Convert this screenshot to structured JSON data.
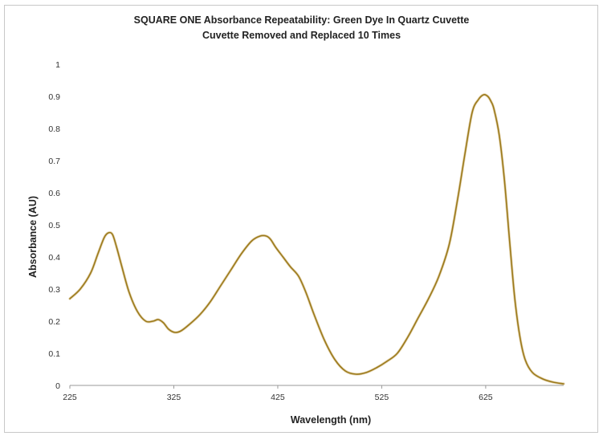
{
  "chart_data": {
    "type": "line",
    "title": "SQUARE ONE Absorbance Repeatability: Green Dye In Quartz Cuvette",
    "subtitle": "Cuvette Removed and Replaced 10 Times",
    "xlabel": "Wavelength (nm)",
    "ylabel": "Absorbance (AU)",
    "xlim": [
      225,
      700
    ],
    "ylim": [
      0,
      1
    ],
    "x_ticks": [
      225,
      325,
      425,
      525,
      625
    ],
    "x_tick_labels": [
      "225",
      "325",
      "425",
      "525",
      "625"
    ],
    "y_ticks": [
      0,
      0.1,
      0.2,
      0.3,
      0.4,
      0.5,
      0.6,
      0.7,
      0.8,
      0.9,
      1
    ],
    "y_tick_labels": [
      "0",
      "0.1",
      "0.2",
      "0.3",
      "0.4",
      "0.5",
      "0.6",
      "0.7",
      "0.8",
      "0.9",
      "1"
    ],
    "grid": false,
    "legend": "none",
    "series": [
      {
        "color": "#9b7a1c",
        "x": [
          225,
          235,
          245,
          252,
          258,
          262,
          266,
          270,
          275,
          282,
          290,
          298,
          305,
          310,
          315,
          320,
          326,
          332,
          340,
          350,
          360,
          370,
          380,
          390,
          400,
          408,
          414,
          418,
          423,
          430,
          437,
          445,
          452,
          460,
          470,
          480,
          490,
          500,
          510,
          520,
          530,
          540,
          550,
          560,
          570,
          580,
          590,
          598,
          605,
          612,
          618,
          623,
          627,
          630,
          633,
          638,
          643,
          648,
          653,
          658,
          663,
          670,
          680,
          690,
          700
        ],
        "y": [
          0.27,
          0.3,
          0.35,
          0.41,
          0.46,
          0.475,
          0.47,
          0.43,
          0.37,
          0.29,
          0.23,
          0.2,
          0.2,
          0.205,
          0.195,
          0.175,
          0.165,
          0.17,
          0.19,
          0.22,
          0.26,
          0.31,
          0.36,
          0.41,
          0.45,
          0.465,
          0.465,
          0.455,
          0.43,
          0.4,
          0.37,
          0.34,
          0.29,
          0.22,
          0.14,
          0.08,
          0.045,
          0.035,
          0.04,
          0.055,
          0.075,
          0.1,
          0.15,
          0.21,
          0.27,
          0.34,
          0.44,
          0.58,
          0.72,
          0.85,
          0.89,
          0.905,
          0.9,
          0.885,
          0.86,
          0.78,
          0.64,
          0.45,
          0.27,
          0.15,
          0.08,
          0.04,
          0.02,
          0.01,
          0.005
        ]
      }
    ]
  }
}
